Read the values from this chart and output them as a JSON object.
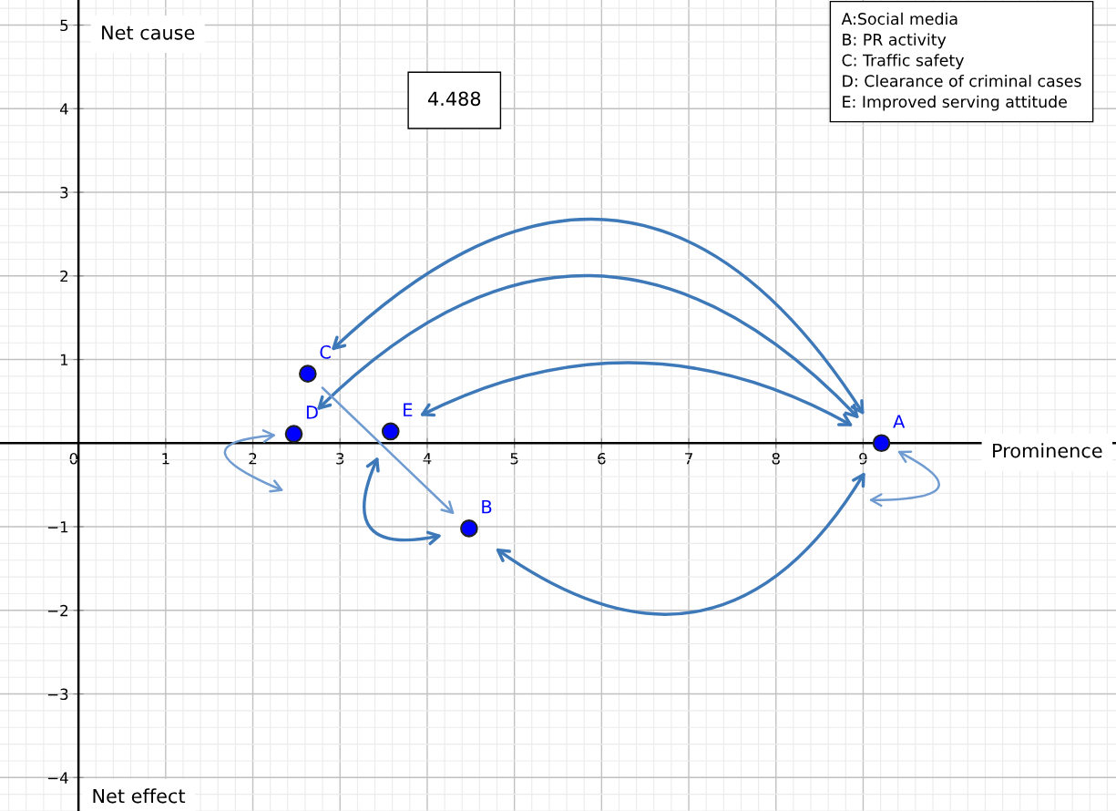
{
  "chart_data": {
    "type": "scatter",
    "xlabel": "Prominence",
    "ylabel": "Net cause",
    "annotations": [
      "4.488",
      "Net effect",
      "A:Social media",
      "B: PR activity",
      "C: Traffic safety",
      "D: Clearance of criminal cases",
      "E: Improved serving attitude"
    ],
    "xlim": [
      -0.9,
      11.9
    ],
    "ylim": [
      -4.4,
      5.3
    ],
    "xticks": [
      0,
      1,
      2,
      3,
      4,
      5,
      6,
      7,
      8,
      9
    ],
    "yticks": [
      {
        "value": -4,
        "label": "−4"
      },
      {
        "value": -3,
        "label": "−3"
      },
      {
        "value": -2,
        "label": "−2"
      },
      {
        "value": -1,
        "label": "−1"
      },
      1,
      2,
      3,
      4,
      5
    ],
    "grid": true,
    "legend": false,
    "marker": "circle",
    "series": [
      {
        "name": "A",
        "color": "#0000ff",
        "x": [
          9.21
        ],
        "values": [
          0.0
        ]
      },
      {
        "name": "B",
        "color": "#0000ff",
        "x": [
          4.48
        ],
        "values": [
          -1.02
        ]
      },
      {
        "name": "C",
        "color": "#0000ff",
        "x": [
          2.63
        ],
        "values": [
          0.83
        ]
      },
      {
        "name": "D",
        "color": "#0000ff",
        "x": [
          2.47
        ],
        "values": [
          0.11
        ]
      },
      {
        "name": "E",
        "color": "#0000ff",
        "x": [
          3.58
        ],
        "values": [
          0.14
        ]
      }
    ]
  }
}
